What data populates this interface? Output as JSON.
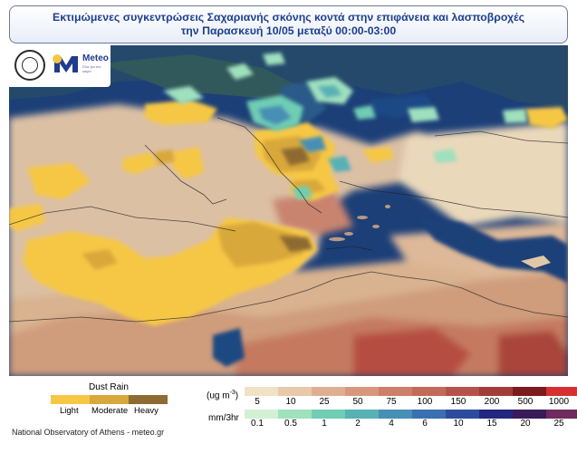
{
  "title": {
    "line1": "Εκτιμώμενες συγκεντρώσεις Σαχαριανής σκόνης κοντά στην επιφάνεια και λασποβροχές",
    "line2": "την Παρασκευή 10/05 μεταξύ 00:00-03:00"
  },
  "logos": {
    "meteo_name": "Meteo",
    "meteo_tagline": "Όλα για τον καιρό"
  },
  "dust_rain_legend": {
    "title": "Dust Rain",
    "items": [
      {
        "label": "Light",
        "color": "#f6c745"
      },
      {
        "label": "Moderate",
        "color": "#d9a83a"
      },
      {
        "label": "Heavy",
        "color": "#8e6b33"
      }
    ]
  },
  "concentration_scale": {
    "unit_prefix": "(ug m",
    "unit_exponent": "-3",
    "unit_suffix": ")",
    "ticks": [
      "5",
      "10",
      "25",
      "50",
      "75",
      "100",
      "150",
      "200",
      "500",
      "1000"
    ],
    "colors": [
      "#f1e1c5",
      "#e9c9a9",
      "#dfae91",
      "#d7987d",
      "#cd7f69",
      "#c46a58",
      "#b5534a",
      "#a33c38",
      "#7c1b1b",
      "#d73030"
    ]
  },
  "precip_scale": {
    "unit": "mm/3hr",
    "ticks": [
      "0.1",
      "0.5",
      "1",
      "2",
      "4",
      "6",
      "10",
      "15",
      "20",
      "25"
    ],
    "colors": [
      "#d2f0d2",
      "#9fe0bd",
      "#70cdb3",
      "#57b1b5",
      "#468fb5",
      "#3a6fb0",
      "#2d4b9e",
      "#22277f",
      "#3a1b5a",
      "#6f2a5e"
    ]
  },
  "credit": "National Observatory of Athens - meteo.gr",
  "colors": {
    "sea": "#1c3f78",
    "title_text": "#1d3f8f",
    "dust_light": "#f6c745",
    "dust_moderate": "#d9a83a",
    "dust_heavy": "#8e6b33"
  }
}
